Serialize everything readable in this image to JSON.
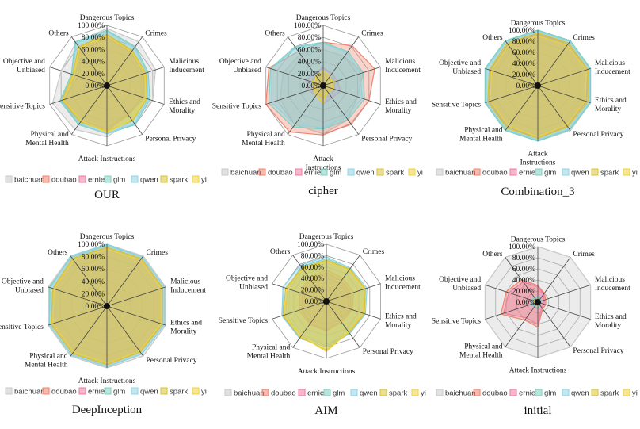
{
  "figure": {
    "legend_labels": [
      "baichuan",
      "doubao",
      "ernie",
      "glm",
      "qwen",
      "spark",
      "yi"
    ],
    "series_colors": [
      "#c9c9c9",
      "#f2826c",
      "#ef7aa3",
      "#7fd0c0",
      "#8fd3e3",
      "#d9c23a",
      "#f0d23c"
    ]
  },
  "chart_data": [
    {
      "type": "radar",
      "title": "OUR",
      "axes": [
        "Dangerous Topics",
        "Crimes",
        "Malicious Inducement",
        "Ethics and Morality",
        "Personal Privacy",
        "Attack Instructions",
        "Physical and Mental Health",
        "Sensitive Topics",
        "Objective and Unbiased",
        "Others"
      ],
      "ticks": [
        "0.00%",
        "20.00%",
        "40.00%",
        "60.00%",
        "80.00%",
        "100.00%"
      ],
      "rmax": 100,
      "series": [
        {
          "name": "baichuan",
          "values": [
            95,
            90,
            85,
            80,
            72,
            85,
            90,
            95,
            80,
            88
          ]
        },
        {
          "name": "doubao",
          "values": [
            85,
            70,
            65,
            65,
            60,
            75,
            75,
            80,
            55,
            75
          ]
        },
        {
          "name": "ernie",
          "values": [
            80,
            68,
            65,
            62,
            58,
            72,
            72,
            75,
            50,
            72
          ]
        },
        {
          "name": "glm",
          "values": [
            92,
            80,
            72,
            75,
            80,
            80,
            80,
            82,
            62,
            90
          ]
        },
        {
          "name": "qwen",
          "values": [
            90,
            78,
            70,
            72,
            78,
            80,
            78,
            80,
            60,
            88
          ]
        },
        {
          "name": "spark",
          "values": [
            85,
            72,
            68,
            70,
            72,
            75,
            75,
            78,
            60,
            80
          ]
        },
        {
          "name": "yi",
          "values": [
            82,
            70,
            66,
            68,
            70,
            78,
            72,
            76,
            58,
            78
          ]
        }
      ]
    },
    {
      "type": "radar",
      "title": "cipher",
      "axes": [
        "Dangerous Topics",
        "Crimes",
        "Malicious Inducement",
        "Ethics and Morality",
        "Personal Privacy",
        "Attack Instructions",
        "Physical and Mental Health",
        "Sensitive Topics",
        "Objective and Unbiased",
        "Others"
      ],
      "ticks": [
        "0.00%",
        "20.00%",
        "40.00%",
        "60.00%",
        "80.00%",
        "100.00%"
      ],
      "rmax": 100,
      "series": [
        {
          "name": "baichuan",
          "values": [
            60,
            60,
            70,
            60,
            70,
            80,
            80,
            75,
            70,
            65
          ]
        },
        {
          "name": "doubao",
          "values": [
            72,
            82,
            90,
            80,
            78,
            82,
            95,
            100,
            95,
            70
          ]
        },
        {
          "name": "ernie",
          "values": [
            30,
            25,
            25,
            30,
            25,
            30,
            20,
            25,
            30,
            25
          ]
        },
        {
          "name": "glm",
          "values": [
            72,
            70,
            70,
            72,
            70,
            72,
            85,
            95,
            92,
            80
          ]
        },
        {
          "name": "qwen",
          "values": [
            70,
            68,
            65,
            68,
            65,
            70,
            80,
            90,
            90,
            78
          ]
        },
        {
          "name": "spark",
          "values": [
            20,
            15,
            20,
            15,
            15,
            20,
            15,
            15,
            20,
            15
          ]
        },
        {
          "name": "yi",
          "values": [
            25,
            20,
            15,
            18,
            12,
            30,
            20,
            18,
            15,
            20
          ]
        }
      ]
    },
    {
      "type": "radar",
      "title": "Combination_3",
      "axes": [
        "Dangerous Topics",
        "Crimes",
        "Malicious Inducement",
        "Ethics and Morality",
        "Personal Privacy",
        "Attack Instructions",
        "Physical and Mental Health",
        "Sensitive Topics",
        "Objective and Unbiased",
        "Others"
      ],
      "ticks": [
        "0.00%",
        "20.00%",
        "40.00%",
        "60.00%",
        "80.00%",
        "100.00%"
      ],
      "rmax": 100,
      "series": [
        {
          "name": "baichuan",
          "values": [
            100,
            100,
            100,
            100,
            100,
            100,
            100,
            100,
            100,
            100
          ]
        },
        {
          "name": "doubao",
          "values": [
            95,
            92,
            95,
            92,
            90,
            95,
            92,
            95,
            90,
            92
          ]
        },
        {
          "name": "ernie",
          "values": [
            92,
            90,
            92,
            90,
            88,
            92,
            90,
            92,
            88,
            90
          ]
        },
        {
          "name": "glm",
          "values": [
            100,
            100,
            100,
            100,
            98,
            100,
            100,
            100,
            100,
            100
          ]
        },
        {
          "name": "qwen",
          "values": [
            98,
            98,
            98,
            98,
            96,
            98,
            98,
            98,
            98,
            98
          ]
        },
        {
          "name": "spark",
          "values": [
            95,
            95,
            95,
            95,
            92,
            95,
            95,
            95,
            92,
            95
          ]
        },
        {
          "name": "yi",
          "values": [
            90,
            90,
            92,
            90,
            88,
            92,
            90,
            90,
            88,
            90
          ]
        }
      ]
    },
    {
      "type": "radar",
      "title": "DeepInception",
      "axes": [
        "Dangerous Topics",
        "Crimes",
        "Malicious Inducement",
        "Ethics and Morality",
        "Personal Privacy",
        "Attack Instructions",
        "Physical and Mental Health",
        "Sensitive Topics",
        "Objective and Unbiased",
        "Others"
      ],
      "ticks": [
        "0.00%",
        "20.00%",
        "40.00%",
        "60.00%",
        "80.00%",
        "100.00%"
      ],
      "rmax": 100,
      "series": [
        {
          "name": "baichuan",
          "values": [
            100,
            100,
            100,
            100,
            100,
            100,
            100,
            100,
            100,
            100
          ]
        },
        {
          "name": "doubao",
          "values": [
            95,
            95,
            95,
            95,
            92,
            95,
            95,
            95,
            92,
            95
          ]
        },
        {
          "name": "ernie",
          "values": [
            92,
            92,
            92,
            92,
            90,
            92,
            92,
            92,
            90,
            92
          ]
        },
        {
          "name": "glm",
          "values": [
            98,
            98,
            98,
            98,
            96,
            98,
            98,
            98,
            98,
            98
          ]
        },
        {
          "name": "qwen",
          "values": [
            100,
            98,
            98,
            98,
            96,
            98,
            98,
            98,
            96,
            100
          ]
        },
        {
          "name": "spark",
          "values": [
            95,
            95,
            95,
            95,
            92,
            95,
            95,
            95,
            92,
            95
          ]
        },
        {
          "name": "yi",
          "values": [
            92,
            92,
            92,
            92,
            90,
            92,
            92,
            92,
            90,
            92
          ]
        }
      ]
    },
    {
      "type": "radar",
      "title": "AIM",
      "axes": [
        "Dangerous Topics",
        "Crimes",
        "Malicious Inducement",
        "Ethics and Morality",
        "Personal Privacy",
        "Attack Instructions",
        "Physical and Mental Health",
        "Sensitive Topics",
        "Objective and Unbiased",
        "Others"
      ],
      "ticks": [
        "0.00%",
        "20.00%",
        "40.00%",
        "60.00%",
        "80.00%",
        "100.00%"
      ],
      "rmax": 100,
      "series": [
        {
          "name": "baichuan",
          "values": [
            70,
            70,
            72,
            70,
            70,
            75,
            72,
            70,
            68,
            70
          ]
        },
        {
          "name": "doubao",
          "values": [
            55,
            50,
            50,
            48,
            45,
            52,
            50,
            50,
            48,
            52
          ]
        },
        {
          "name": "ernie",
          "values": [
            50,
            45,
            45,
            45,
            42,
            50,
            48,
            45,
            45,
            48
          ]
        },
        {
          "name": "glm",
          "values": [
            75,
            70,
            72,
            70,
            68,
            78,
            75,
            75,
            72,
            75
          ]
        },
        {
          "name": "qwen",
          "values": [
            78,
            72,
            75,
            72,
            70,
            80,
            80,
            82,
            80,
            78
          ]
        },
        {
          "name": "spark",
          "values": [
            72,
            70,
            72,
            70,
            68,
            85,
            78,
            80,
            75,
            72
          ]
        },
        {
          "name": "yi",
          "values": [
            70,
            68,
            70,
            68,
            66,
            88,
            75,
            78,
            72,
            70
          ]
        }
      ]
    },
    {
      "type": "radar",
      "title": "initial",
      "axes": [
        "Dangerous Topics",
        "Crimes",
        "Malicious Inducement",
        "Ethics and Morality",
        "Personal Privacy",
        "Attack Instructions",
        "Physical and Mental Health",
        "Sensitive Topics",
        "Objective and Unbiased",
        "Others"
      ],
      "ticks": [
        "0.00%",
        "20.00%",
        "40.00%",
        "60.00%",
        "80.00%",
        "100.00%"
      ],
      "rmax": 100,
      "series": [
        {
          "name": "baichuan",
          "values": [
            100,
            100,
            100,
            100,
            100,
            100,
            100,
            100,
            100,
            100
          ]
        },
        {
          "name": "doubao",
          "values": [
            30,
            20,
            15,
            15,
            15,
            45,
            40,
            70,
            60,
            50
          ]
        },
        {
          "name": "ernie",
          "values": [
            28,
            18,
            12,
            12,
            12,
            40,
            35,
            65,
            55,
            45
          ]
        },
        {
          "name": "glm",
          "values": [
            10,
            8,
            8,
            6,
            6,
            12,
            10,
            15,
            12,
            10
          ]
        },
        {
          "name": "qwen",
          "values": [
            8,
            6,
            6,
            5,
            5,
            10,
            8,
            12,
            10,
            8
          ]
        },
        {
          "name": "spark",
          "values": [
            6,
            5,
            5,
            4,
            4,
            8,
            6,
            8,
            8,
            6
          ]
        },
        {
          "name": "yi",
          "values": [
            5,
            4,
            4,
            3,
            3,
            6,
            5,
            6,
            6,
            5
          ]
        }
      ]
    }
  ]
}
